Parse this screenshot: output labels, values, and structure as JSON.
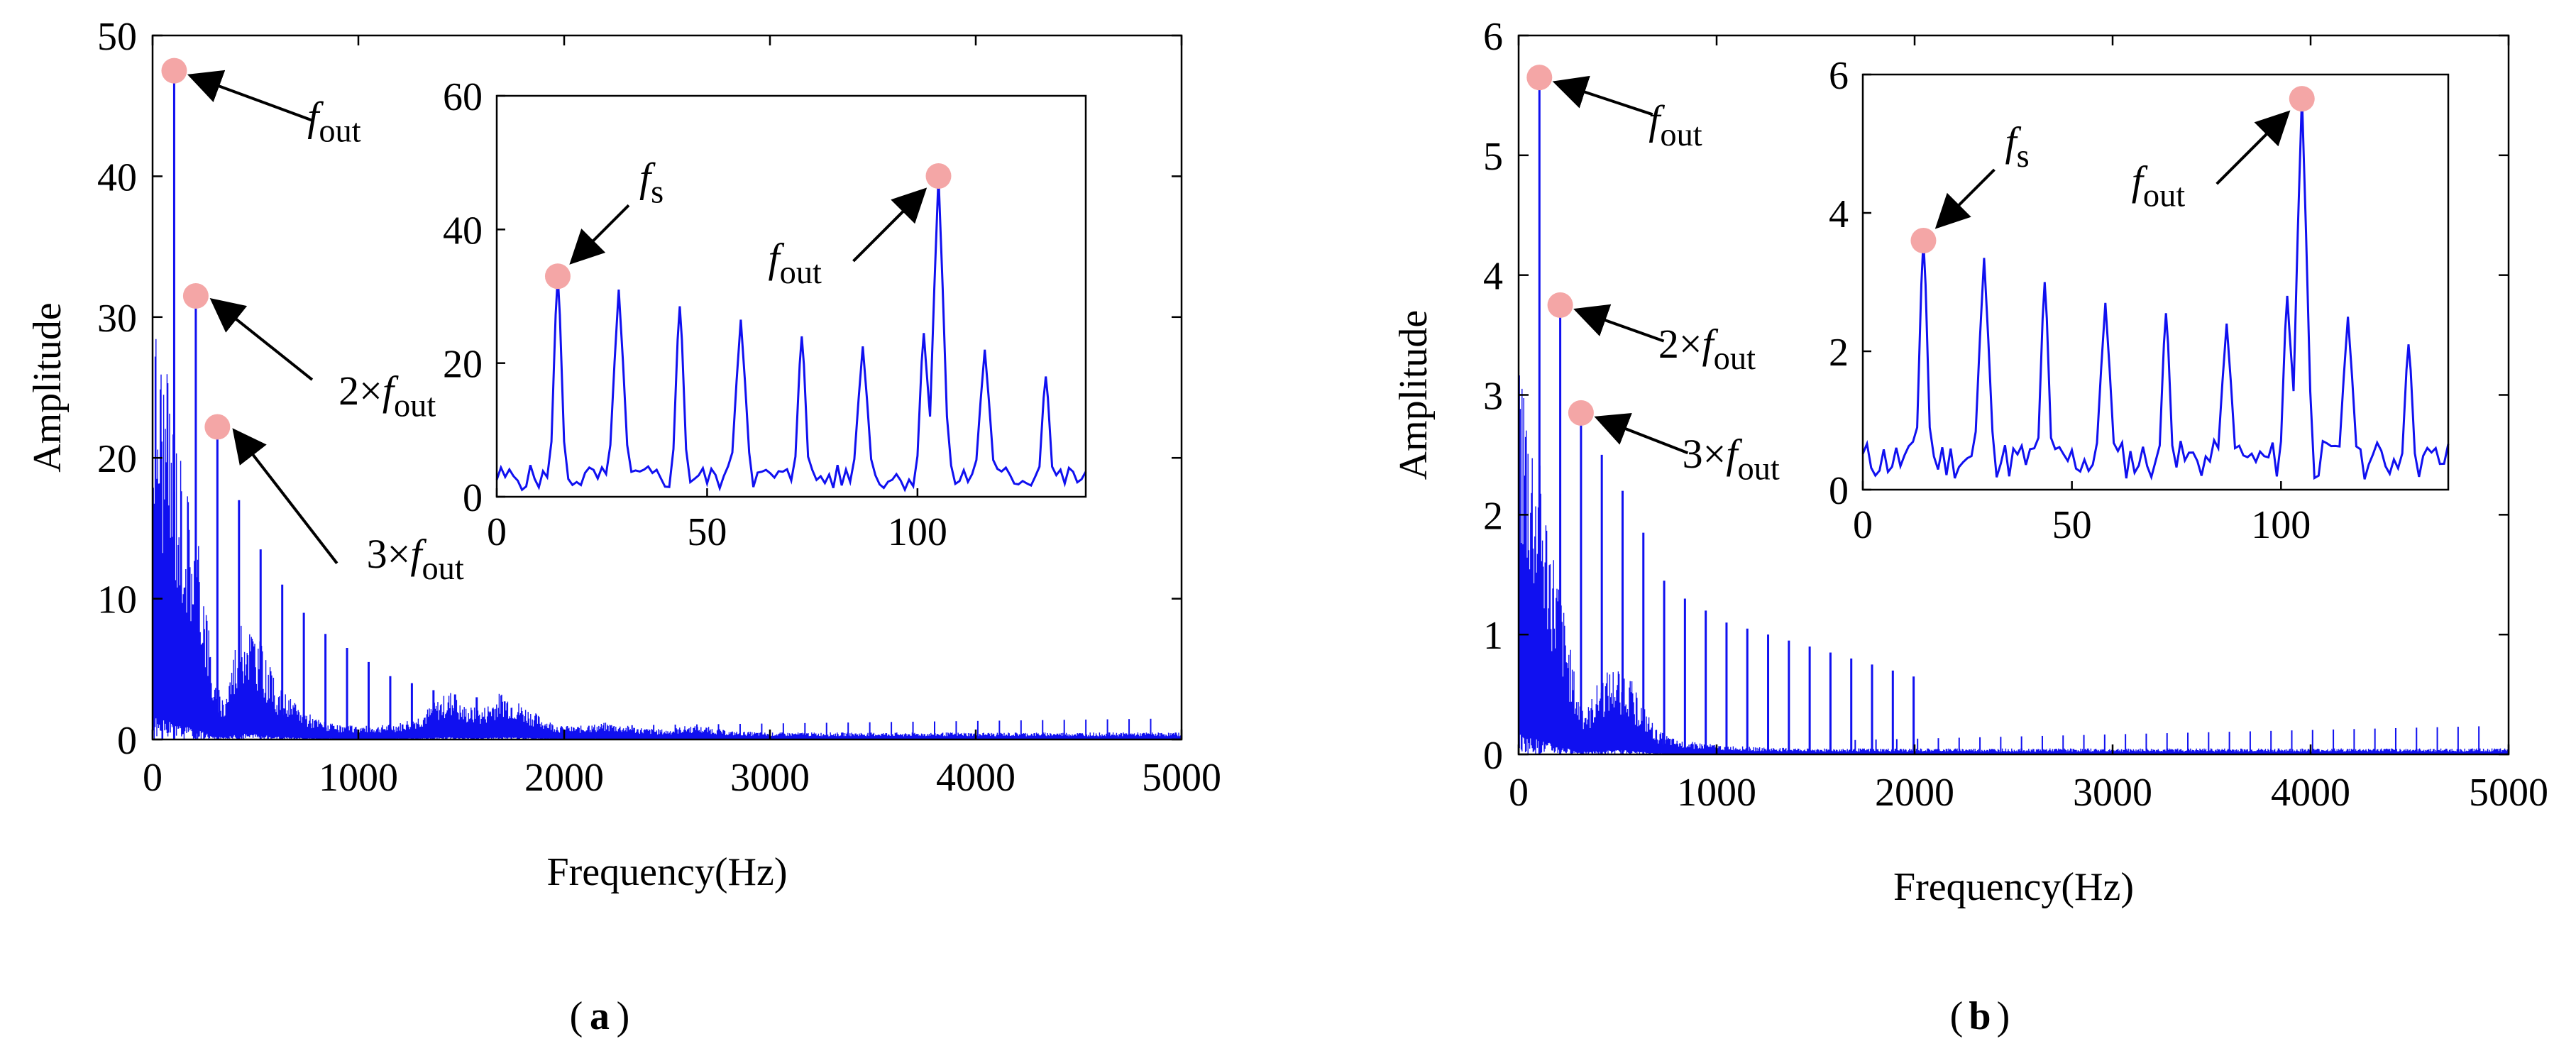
{
  "colors": {
    "signal": "#1010f0",
    "marker": "#f4a6a6",
    "axis": "#000000",
    "arrow": "#000000"
  },
  "panels": [
    {
      "panel_label": "a",
      "chart_data": {
        "type": "line",
        "xlabel": "Frequency(Hz)",
        "ylabel": "Amplitude",
        "xlim": [
          0,
          5000
        ],
        "ylim": [
          0,
          50
        ],
        "xticks": [
          0,
          1000,
          2000,
          3000,
          4000,
          5000
        ],
        "yticks": [
          0,
          10,
          20,
          30,
          40,
          50
        ],
        "grid": false,
        "series": [
          {
            "x": [
              0,
              50,
              100,
              150,
              200,
              250,
              300,
              350,
              400,
              450,
              500,
              550,
              600,
              700,
              800,
              900,
              1000,
              1100,
              1200,
              1300,
              1400,
              1450,
              1500,
              1600,
              1700,
              1800,
              1900,
              2000,
              2100,
              2200,
              2300,
              2400,
              2500,
              2600,
              2700,
              2800,
              3000,
              3500,
              4000,
              4500,
              5000
            ],
            "y": [
              32,
              28,
              24,
              20,
              16,
              12,
              4,
              3,
              7,
              9,
              8,
              6,
              4,
              2.5,
              1.5,
              1,
              1,
              1,
              1.2,
              1.8,
              3,
              3.5,
              2.5,
              2.2,
              3.5,
              2.5,
              1.5,
              0.9,
              1,
              1.2,
              1,
              0.8,
              0.7,
              1,
              0.9,
              0.6,
              0.5,
              0.5,
              0.5,
              0.5,
              0.5
            ]
          }
        ],
        "harmonics": [
          {
            "x": 105,
            "y": 48
          },
          {
            "x": 210,
            "y": 31.5
          },
          {
            "x": 315,
            "y": 22
          },
          {
            "x": 420,
            "y": 17
          },
          {
            "x": 525,
            "y": 13.5
          },
          {
            "x": 630,
            "y": 11
          },
          {
            "x": 735,
            "y": 9
          },
          {
            "x": 840,
            "y": 7.5
          },
          {
            "x": 945,
            "y": 6.5
          },
          {
            "x": 1050,
            "y": 5.5
          },
          {
            "x": 1155,
            "y": 4.5
          },
          {
            "x": 1260,
            "y": 4
          },
          {
            "x": 1365,
            "y": 3.5
          },
          {
            "x": 1470,
            "y": 3.2
          },
          {
            "x": 1575,
            "y": 3
          }
        ],
        "highlights": [
          {
            "x": 105,
            "y": 47.5,
            "label_base": "f",
            "label_sub": "out",
            "prefix": ""
          },
          {
            "x": 210,
            "y": 31.5,
            "label_base": "f",
            "label_sub": "out",
            "prefix": "2×"
          },
          {
            "x": 315,
            "y": 22.2,
            "label_base": "f",
            "label_sub": "out",
            "prefix": "3×"
          }
        ],
        "inset": {
          "xlim": [
            0,
            140
          ],
          "ylim": [
            0,
            60
          ],
          "xticks": [
            0,
            50,
            100
          ],
          "yticks": [
            0,
            20,
            40,
            60
          ],
          "peaks": [
            {
              "x": 14.5,
              "y": 33
            },
            {
              "x": 29,
              "y": 31
            },
            {
              "x": 43.5,
              "y": 28.5
            },
            {
              "x": 58,
              "y": 26.5
            },
            {
              "x": 72.5,
              "y": 24
            },
            {
              "x": 87,
              "y": 22.5
            },
            {
              "x": 101.5,
              "y": 24.5
            },
            {
              "x": 105,
              "y": 48
            },
            {
              "x": 116,
              "y": 22
            },
            {
              "x": 130.5,
              "y": 18
            }
          ],
          "highlights": [
            {
              "x": 14.5,
              "y": 33,
              "label_base": "f",
              "label_sub": "s",
              "prefix": ""
            },
            {
              "x": 105,
              "y": 48,
              "label_base": "f",
              "label_sub": "out",
              "prefix": ""
            }
          ]
        }
      }
    },
    {
      "panel_label": "b",
      "chart_data": {
        "type": "line",
        "xlabel": "Frequency(Hz)",
        "ylabel": "Amplitude",
        "xlim": [
          0,
          5000
        ],
        "ylim": [
          0,
          6
        ],
        "xticks": [
          0,
          1000,
          2000,
          3000,
          4000,
          5000
        ],
        "yticks": [
          0,
          1,
          2,
          3,
          4,
          5,
          6
        ],
        "grid": false,
        "series": [
          {
            "x": [
              0,
              50,
              100,
              150,
              200,
              250,
              300,
              350,
              400,
              450,
              500,
              550,
              600,
              700,
              800,
              900,
              1000,
              1200,
              1500,
              2000,
              2500,
              3000,
              3500,
              4000,
              4500,
              5000
            ],
            "y": [
              3.6,
              3,
              2.5,
              2,
              1.5,
              1,
              0.5,
              0.4,
              0.6,
              0.7,
              0.75,
              0.7,
              0.5,
              0.2,
              0.12,
              0.1,
              0.08,
              0.06,
              0.05,
              0.05,
              0.05,
              0.05,
              0.05,
              0.05,
              0.05,
              0.05
            ]
          }
        ],
        "harmonics": [
          {
            "x": 105,
            "y": 5.65
          },
          {
            "x": 210,
            "y": 3.75
          },
          {
            "x": 315,
            "y": 2.8
          },
          {
            "x": 420,
            "y": 2.5
          },
          {
            "x": 525,
            "y": 2.2
          },
          {
            "x": 630,
            "y": 1.85
          },
          {
            "x": 735,
            "y": 1.45
          },
          {
            "x": 840,
            "y": 1.3
          },
          {
            "x": 945,
            "y": 1.2
          },
          {
            "x": 1050,
            "y": 1.1
          },
          {
            "x": 1155,
            "y": 1.05
          },
          {
            "x": 1260,
            "y": 1
          },
          {
            "x": 1365,
            "y": 0.95
          },
          {
            "x": 1470,
            "y": 0.9
          },
          {
            "x": 1575,
            "y": 0.85
          },
          {
            "x": 1680,
            "y": 0.8
          },
          {
            "x": 1785,
            "y": 0.75
          },
          {
            "x": 1890,
            "y": 0.7
          },
          {
            "x": 1995,
            "y": 0.65
          }
        ],
        "highlights": [
          {
            "x": 105,
            "y": 5.65,
            "label_base": "f",
            "label_sub": "out",
            "prefix": ""
          },
          {
            "x": 210,
            "y": 3.75,
            "label_base": "f",
            "label_sub": "out",
            "prefix": "2×"
          },
          {
            "x": 315,
            "y": 2.85,
            "label_base": "f",
            "label_sub": "out",
            "prefix": "3×"
          }
        ],
        "inset": {
          "xlim": [
            0,
            140
          ],
          "ylim": [
            0,
            6
          ],
          "xticks": [
            0,
            50,
            100
          ],
          "yticks": [
            0,
            2,
            4,
            6
          ],
          "peaks": [
            {
              "x": 14.5,
              "y": 3.6
            },
            {
              "x": 29,
              "y": 3.35
            },
            {
              "x": 43.5,
              "y": 3
            },
            {
              "x": 58,
              "y": 2.7
            },
            {
              "x": 72.5,
              "y": 2.55
            },
            {
              "x": 87,
              "y": 2.4
            },
            {
              "x": 101.5,
              "y": 2.8
            },
            {
              "x": 105,
              "y": 5.7
            },
            {
              "x": 116,
              "y": 2.5
            },
            {
              "x": 130.5,
              "y": 2.1
            }
          ],
          "highlights": [
            {
              "x": 14.5,
              "y": 3.6,
              "label_base": "f",
              "label_sub": "s",
              "prefix": ""
            },
            {
              "x": 105,
              "y": 5.65,
              "label_base": "f",
              "label_sub": "out",
              "prefix": ""
            }
          ]
        }
      }
    }
  ]
}
